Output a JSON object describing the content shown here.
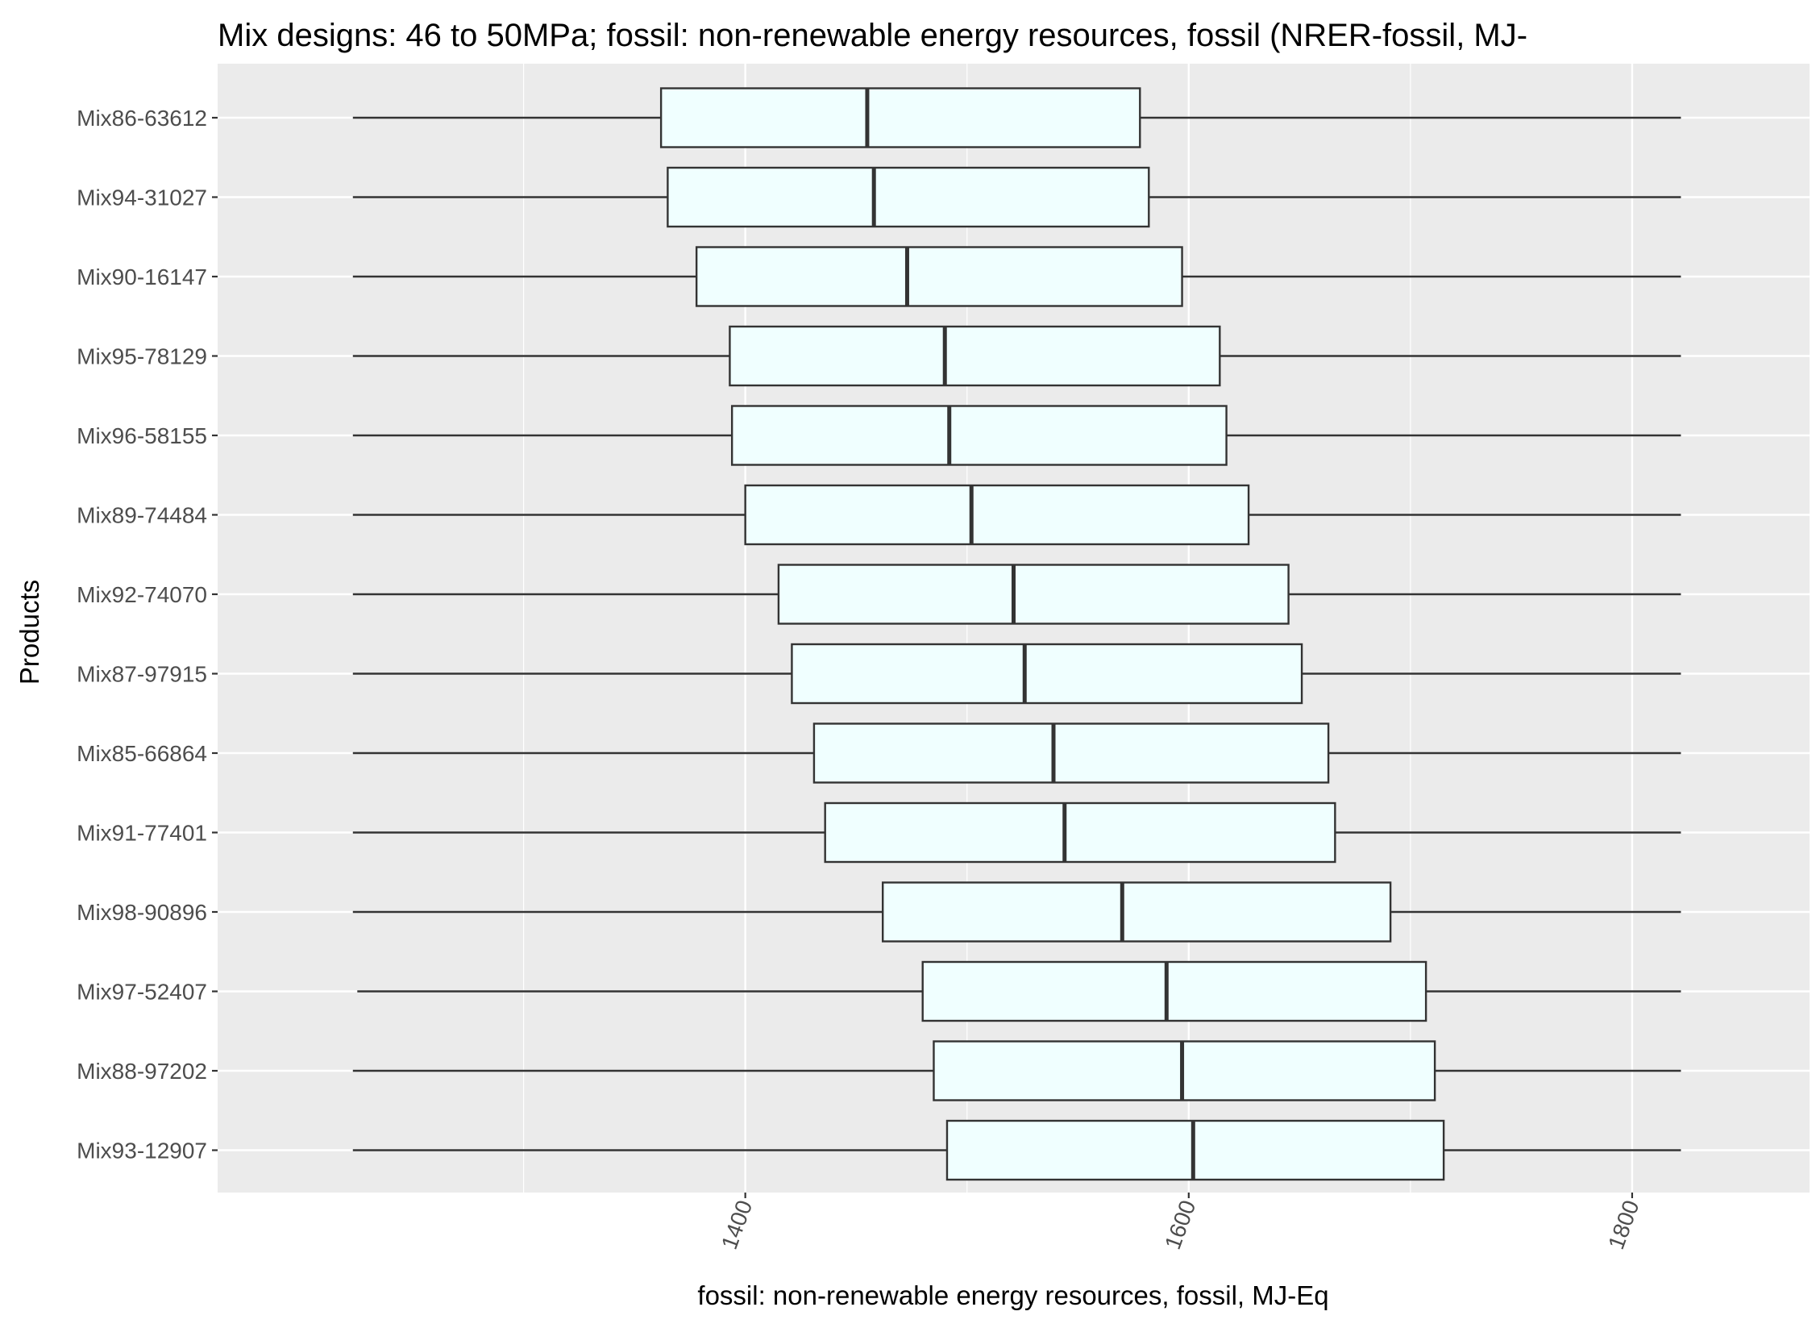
{
  "chart_data": {
    "type": "boxplot",
    "title": "Mix designs: 46 to 50MPa; fossil: non-renewable energy resources, fossil (NRER-fossil, MJ-",
    "xlabel": "fossil: non-renewable energy resources, fossil, MJ-Eq",
    "ylabel": "Products",
    "xlim": [
      1162,
      1880
    ],
    "xticks": [
      1400,
      1600,
      1800
    ],
    "grid": true,
    "colors": {
      "panel": "#ebebeb",
      "grid": "#ffffff",
      "box_fill": "#f0ffff",
      "stroke": "#333333"
    },
    "categories": [
      "Mix86-63612",
      "Mix94-31027",
      "Mix90-16147",
      "Mix95-78129",
      "Mix96-58155",
      "Mix89-74484",
      "Mix92-74070",
      "Mix87-97915",
      "Mix85-66864",
      "Mix91-77401",
      "Mix98-90896",
      "Mix97-52407",
      "Mix88-97202",
      "Mix93-12907"
    ],
    "boxes": [
      {
        "category": "Mix86-63612",
        "min": 1223,
        "q1": 1362,
        "median": 1455,
        "q3": 1578,
        "max": 1822
      },
      {
        "category": "Mix94-31027",
        "min": 1223,
        "q1": 1365,
        "median": 1458,
        "q3": 1582,
        "max": 1822
      },
      {
        "category": "Mix90-16147",
        "min": 1223,
        "q1": 1378,
        "median": 1473,
        "q3": 1597,
        "max": 1822
      },
      {
        "category": "Mix95-78129",
        "min": 1223,
        "q1": 1393,
        "median": 1490,
        "q3": 1614,
        "max": 1822
      },
      {
        "category": "Mix96-58155",
        "min": 1223,
        "q1": 1394,
        "median": 1492,
        "q3": 1617,
        "max": 1822
      },
      {
        "category": "Mix89-74484",
        "min": 1223,
        "q1": 1400,
        "median": 1502,
        "q3": 1627,
        "max": 1822
      },
      {
        "category": "Mix92-74070",
        "min": 1223,
        "q1": 1415,
        "median": 1521,
        "q3": 1645,
        "max": 1822
      },
      {
        "category": "Mix87-97915",
        "min": 1223,
        "q1": 1421,
        "median": 1526,
        "q3": 1651,
        "max": 1822
      },
      {
        "category": "Mix85-66864",
        "min": 1223,
        "q1": 1431,
        "median": 1539,
        "q3": 1663,
        "max": 1822
      },
      {
        "category": "Mix91-77401",
        "min": 1223,
        "q1": 1436,
        "median": 1544,
        "q3": 1666,
        "max": 1822
      },
      {
        "category": "Mix98-90896",
        "min": 1223,
        "q1": 1462,
        "median": 1570,
        "q3": 1691,
        "max": 1822
      },
      {
        "category": "Mix97-52407",
        "min": 1225,
        "q1": 1480,
        "median": 1590,
        "q3": 1707,
        "max": 1822
      },
      {
        "category": "Mix88-97202",
        "min": 1223,
        "q1": 1485,
        "median": 1597,
        "q3": 1711,
        "max": 1822
      },
      {
        "category": "Mix93-12907",
        "min": 1223,
        "q1": 1491,
        "median": 1602,
        "q3": 1715,
        "max": 1822
      }
    ]
  }
}
